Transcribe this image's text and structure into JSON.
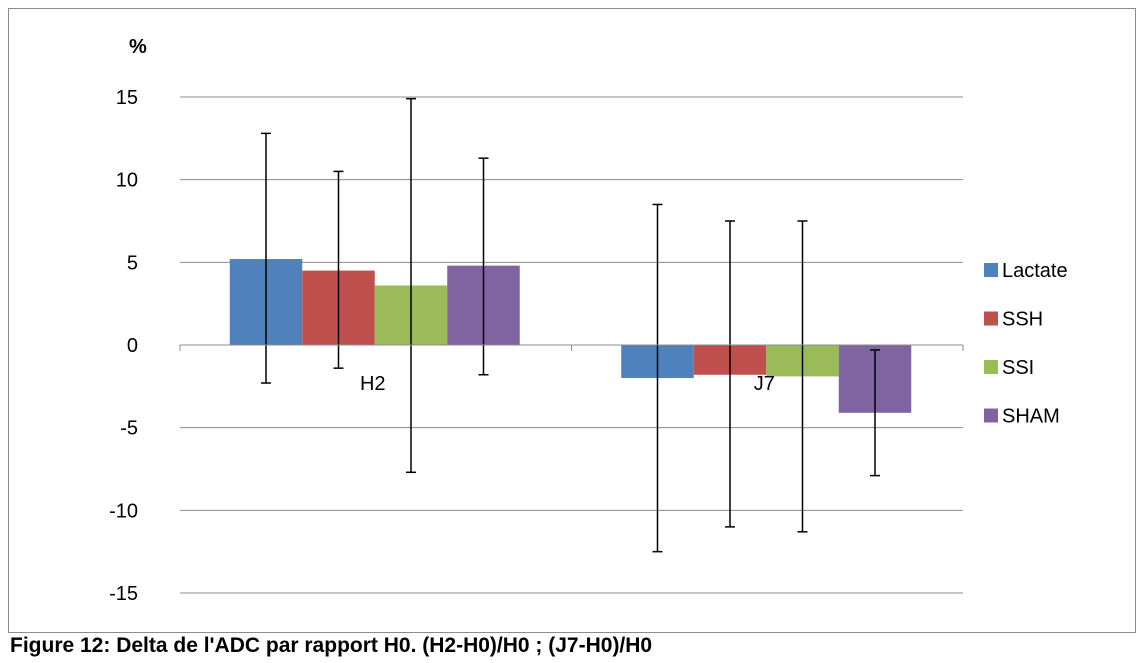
{
  "caption": "Figure 12: Delta de l'ADC par rapport H0. (H2-H0)/H0 ; (J7-H0)/H0",
  "chart_data": {
    "type": "bar",
    "ylabel": "%",
    "ylim": [
      -15,
      15
    ],
    "yticks": [
      15,
      10,
      5,
      0,
      -5,
      -10,
      -15
    ],
    "grid": true,
    "legend_position": "right",
    "categories": [
      "H2",
      "J7"
    ],
    "series": [
      {
        "name": "Lactate",
        "color": "#4f81bd",
        "values": [
          5.2,
          -2.0
        ],
        "err_low": [
          -2.3,
          -12.5
        ],
        "err_high": [
          12.8,
          8.5
        ]
      },
      {
        "name": "SSH",
        "color": "#c0504d",
        "values": [
          4.5,
          -1.8
        ],
        "err_low": [
          -1.4,
          -11.0
        ],
        "err_high": [
          10.5,
          7.5
        ]
      },
      {
        "name": "SSI",
        "color": "#9bbb59",
        "values": [
          3.6,
          -1.9
        ],
        "err_low": [
          -7.7,
          -11.3
        ],
        "err_high": [
          14.9,
          7.5
        ]
      },
      {
        "name": "SHAM",
        "color": "#8064a2",
        "values": [
          4.8,
          -4.1
        ],
        "err_low": [
          -1.8,
          -7.9
        ],
        "err_high": [
          11.3,
          -0.3
        ]
      }
    ]
  }
}
